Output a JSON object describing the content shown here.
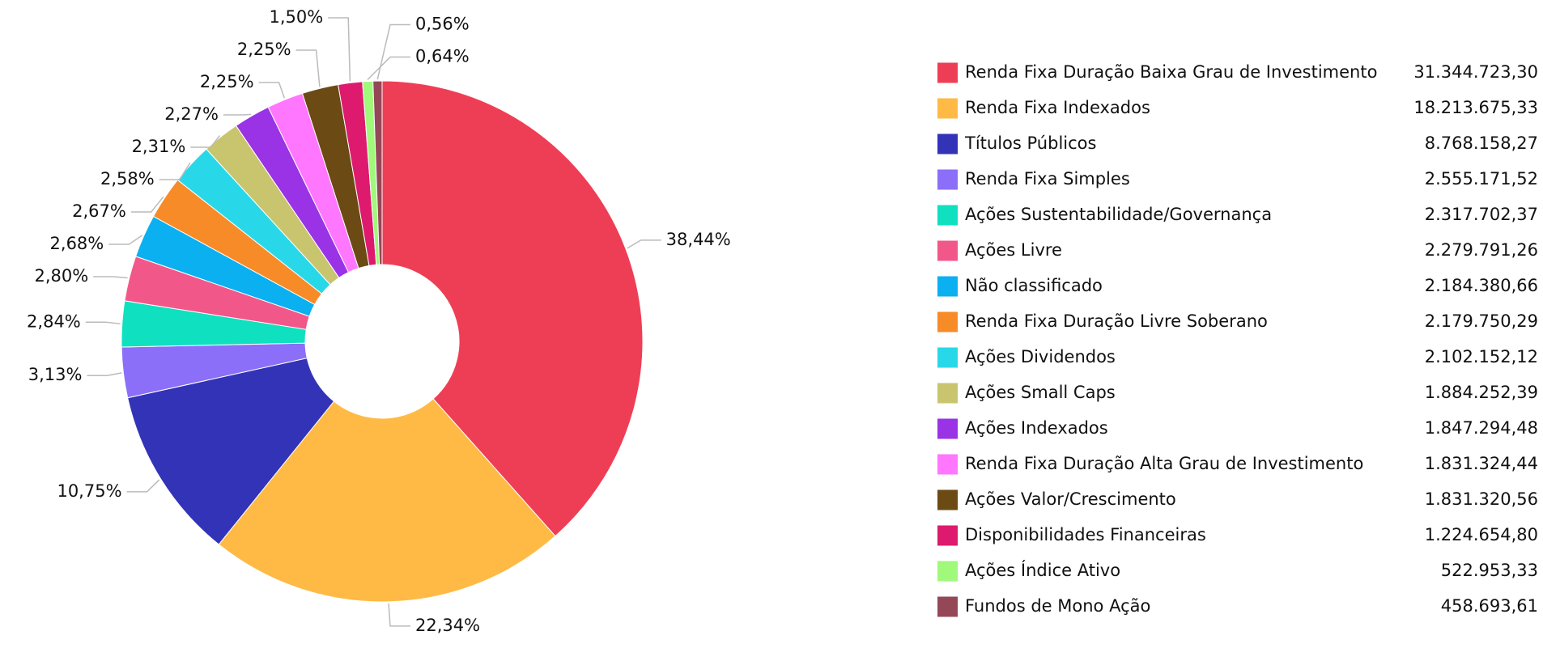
{
  "chart_data": {
    "type": "donut",
    "categories": [
      "Renda Fixa Duração Baixa Grau de Investimento",
      "Renda Fixa Indexados",
      "Títulos Públicos",
      "Renda Fixa Simples",
      "Ações Sustentabilidade/Governança",
      "Ações Livre",
      "Não classificado",
      "Renda Fixa Duração Livre Soberano",
      "Ações Dividendos",
      "Ações Small Caps",
      "Ações Indexados",
      "Renda Fixa Duração Alta Grau de Investimento",
      "Ações Valor/Crescimento",
      "Disponibilidades Financeiras",
      "Ações Índice Ativo",
      "Fundos de Mono Ação"
    ],
    "values": [
      38.44,
      22.34,
      10.75,
      3.13,
      2.84,
      2.8,
      2.68,
      2.67,
      2.58,
      2.31,
      2.27,
      2.25,
      2.25,
      1.5,
      0.64,
      0.56
    ],
    "value_labels": [
      "38,44%",
      "22,34%",
      "10,75%",
      "3,13%",
      "2,84%",
      "2,80%",
      "2,68%",
      "2,67%",
      "2,58%",
      "2,31%",
      "2,27%",
      "2,25%",
      "2,25%",
      "1,50%",
      "0,64%",
      "0,56%"
    ],
    "amounts": [
      "31.344.723,30",
      "18.213.675,33",
      "8.768.158,27",
      "2.555.171,52",
      "2.317.702,37",
      "2.279.791,26",
      "2.184.380,66",
      "2.179.750,29",
      "2.102.152,12",
      "1.884.252,39",
      "1.847.294,48",
      "1.831.324,44",
      "1.831.320,56",
      "1.224.654,80",
      "522.953,33",
      "458.693,61"
    ],
    "colors": [
      "#ee3e55",
      "#ffba45",
      "#3333b8",
      "#8b6ff8",
      "#0fe0c0",
      "#f2578a",
      "#0ab0f0",
      "#f78b28",
      "#29d8e8",
      "#c8c56e",
      "#9933e5",
      "#ff77ff",
      "#6b4a14",
      "#dd1a6e",
      "#a0f97a",
      "#944857"
    ],
    "legend": "right"
  }
}
